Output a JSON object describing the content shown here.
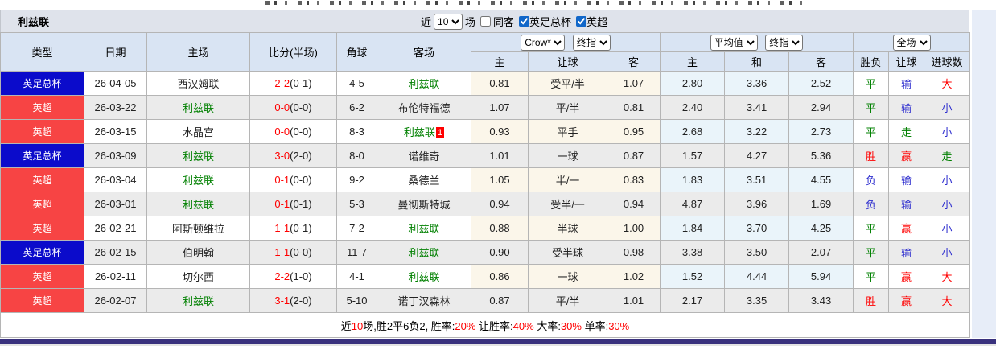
{
  "header": {
    "title": "利兹联",
    "filter": {
      "recent_label": "近",
      "recent_value": "10",
      "recent_suffix": "场",
      "same_away_label": "同客",
      "same_away_checked": false,
      "facup_label": "英足总杯",
      "facup_checked": true,
      "epl_label": "英超",
      "epl_checked": true
    }
  },
  "table": {
    "selects": {
      "company": "Crow*",
      "final1": "终指",
      "average": "平均值",
      "final2": "终指",
      "scope": "全场"
    },
    "headers": {
      "type": "类型",
      "date": "日期",
      "home": "主场",
      "score": "比分(半场)",
      "corner": "角球",
      "away": "客场",
      "h": "主",
      "handicap": "让球",
      "a": "客",
      "avg_h": "主",
      "avg_d": "和",
      "avg_a": "客",
      "wdl": "胜负",
      "hc": "让球",
      "goals": "进球数"
    },
    "rows": [
      {
        "type": "英足总杯",
        "league": "facup",
        "date": "26-04-05",
        "home": "西汉姆联",
        "home_is_leeds": false,
        "score": "2-2",
        "half": "(0-1)",
        "corners": "4-5",
        "away": "利兹联",
        "away_is_leeds": true,
        "away_redcard": "",
        "odds_home": "0.81",
        "handicap": "受平/半",
        "odds_away": "1.07",
        "avg_home": "2.80",
        "avg_draw": "3.36",
        "avg_away": "2.52",
        "result_wdl": "平",
        "result_wdl_color": "g",
        "result_handicap": "输",
        "result_handicap_color": "b",
        "result_goals": "大",
        "result_goals_color": "r"
      },
      {
        "type": "英超",
        "league": "epl",
        "date": "26-03-22",
        "home": "利兹联",
        "home_is_leeds": true,
        "score": "0-0",
        "half": "(0-0)",
        "corners": "6-2",
        "away": "布伦特福德",
        "away_is_leeds": false,
        "away_redcard": "",
        "odds_home": "1.07",
        "handicap": "平/半",
        "odds_away": "0.81",
        "avg_home": "2.40",
        "avg_draw": "3.41",
        "avg_away": "2.94",
        "result_wdl": "平",
        "result_wdl_color": "g",
        "result_handicap": "输",
        "result_handicap_color": "b",
        "result_goals": "小",
        "result_goals_color": "b"
      },
      {
        "type": "英超",
        "league": "epl",
        "date": "26-03-15",
        "home": "水晶宫",
        "home_is_leeds": false,
        "score": "0-0",
        "half": "(0-0)",
        "corners": "8-3",
        "away": "利兹联",
        "away_is_leeds": true,
        "away_redcard": "1",
        "odds_home": "0.93",
        "handicap": "平手",
        "odds_away": "0.95",
        "avg_home": "2.68",
        "avg_draw": "3.22",
        "avg_away": "2.73",
        "result_wdl": "平",
        "result_wdl_color": "g",
        "result_handicap": "走",
        "result_handicap_color": "g",
        "result_goals": "小",
        "result_goals_color": "b"
      },
      {
        "type": "英足总杯",
        "league": "facup",
        "date": "26-03-09",
        "home": "利兹联",
        "home_is_leeds": true,
        "score": "3-0",
        "half": "(2-0)",
        "corners": "8-0",
        "away": "诺维奇",
        "away_is_leeds": false,
        "away_redcard": "",
        "odds_home": "1.01",
        "handicap": "一球",
        "odds_away": "0.87",
        "avg_home": "1.57",
        "avg_draw": "4.27",
        "avg_away": "5.36",
        "result_wdl": "胜",
        "result_wdl_color": "r",
        "result_handicap": "赢",
        "result_handicap_color": "r",
        "result_goals": "走",
        "result_goals_color": "g"
      },
      {
        "type": "英超",
        "league": "epl",
        "date": "26-03-04",
        "home": "利兹联",
        "home_is_leeds": true,
        "score": "0-1",
        "half": "(0-0)",
        "corners": "9-2",
        "away": "桑德兰",
        "away_is_leeds": false,
        "away_redcard": "",
        "odds_home": "1.05",
        "handicap": "半/一",
        "odds_away": "0.83",
        "avg_home": "1.83",
        "avg_draw": "3.51",
        "avg_away": "4.55",
        "result_wdl": "负",
        "result_wdl_color": "b",
        "result_handicap": "输",
        "result_handicap_color": "b",
        "result_goals": "小",
        "result_goals_color": "b"
      },
      {
        "type": "英超",
        "league": "epl",
        "date": "26-03-01",
        "home": "利兹联",
        "home_is_leeds": true,
        "score": "0-1",
        "half": "(0-1)",
        "corners": "5-3",
        "away": "曼彻斯特城",
        "away_is_leeds": false,
        "away_redcard": "",
        "odds_home": "0.94",
        "handicap": "受半/一",
        "odds_away": "0.94",
        "avg_home": "4.87",
        "avg_draw": "3.96",
        "avg_away": "1.69",
        "result_wdl": "负",
        "result_wdl_color": "b",
        "result_handicap": "输",
        "result_handicap_color": "b",
        "result_goals": "小",
        "result_goals_color": "b"
      },
      {
        "type": "英超",
        "league": "epl",
        "date": "26-02-21",
        "home": "阿斯顿维拉",
        "home_is_leeds": false,
        "score": "1-1",
        "half": "(0-1)",
        "corners": "7-2",
        "away": "利兹联",
        "away_is_leeds": true,
        "away_redcard": "",
        "odds_home": "0.88",
        "handicap": "半球",
        "odds_away": "1.00",
        "avg_home": "1.84",
        "avg_draw": "3.70",
        "avg_away": "4.25",
        "result_wdl": "平",
        "result_wdl_color": "g",
        "result_handicap": "赢",
        "result_handicap_color": "r",
        "result_goals": "小",
        "result_goals_color": "b"
      },
      {
        "type": "英足总杯",
        "league": "facup",
        "date": "26-02-15",
        "home": "伯明翰",
        "home_is_leeds": false,
        "score": "1-1",
        "half": "(0-0)",
        "corners": "11-7",
        "away": "利兹联",
        "away_is_leeds": true,
        "away_redcard": "",
        "odds_home": "0.90",
        "handicap": "受半球",
        "odds_away": "0.98",
        "avg_home": "3.38",
        "avg_draw": "3.50",
        "avg_away": "2.07",
        "result_wdl": "平",
        "result_wdl_color": "g",
        "result_handicap": "输",
        "result_handicap_color": "b",
        "result_goals": "小",
        "result_goals_color": "b"
      },
      {
        "type": "英超",
        "league": "epl",
        "date": "26-02-11",
        "home": "切尔西",
        "home_is_leeds": false,
        "score": "2-2",
        "half": "(1-0)",
        "corners": "4-1",
        "away": "利兹联",
        "away_is_leeds": true,
        "away_redcard": "",
        "odds_home": "0.86",
        "handicap": "一球",
        "odds_away": "1.02",
        "avg_home": "1.52",
        "avg_draw": "4.44",
        "avg_away": "5.94",
        "result_wdl": "平",
        "result_wdl_color": "g",
        "result_handicap": "赢",
        "result_handicap_color": "r",
        "result_goals": "大",
        "result_goals_color": "r"
      },
      {
        "type": "英超",
        "league": "epl",
        "date": "26-02-07",
        "home": "利兹联",
        "home_is_leeds": true,
        "score": "3-1",
        "half": "(2-0)",
        "corners": "5-10",
        "away": "诺丁汉森林",
        "away_is_leeds": false,
        "away_redcard": "",
        "odds_home": "0.87",
        "handicap": "平/半",
        "odds_away": "1.01",
        "avg_home": "2.17",
        "avg_draw": "3.35",
        "avg_away": "3.43",
        "result_wdl": "胜",
        "result_wdl_color": "r",
        "result_handicap": "赢",
        "result_handicap_color": "r",
        "result_goals": "大",
        "result_goals_color": "r"
      }
    ]
  },
  "footer": {
    "segments": [
      {
        "t": "近",
        "c": "k"
      },
      {
        "t": "10",
        "c": "r"
      },
      {
        "t": "场,胜2平6负2, 胜率:",
        "c": "k"
      },
      {
        "t": "20%",
        "c": "r"
      },
      {
        "t": " 让胜率:",
        "c": "k"
      },
      {
        "t": "40%",
        "c": "r"
      },
      {
        "t": " 大率:",
        "c": "k"
      },
      {
        "t": "30%",
        "c": "r"
      },
      {
        "t": " 单率:",
        "c": "k"
      },
      {
        "t": "30%",
        "c": "r"
      }
    ]
  }
}
